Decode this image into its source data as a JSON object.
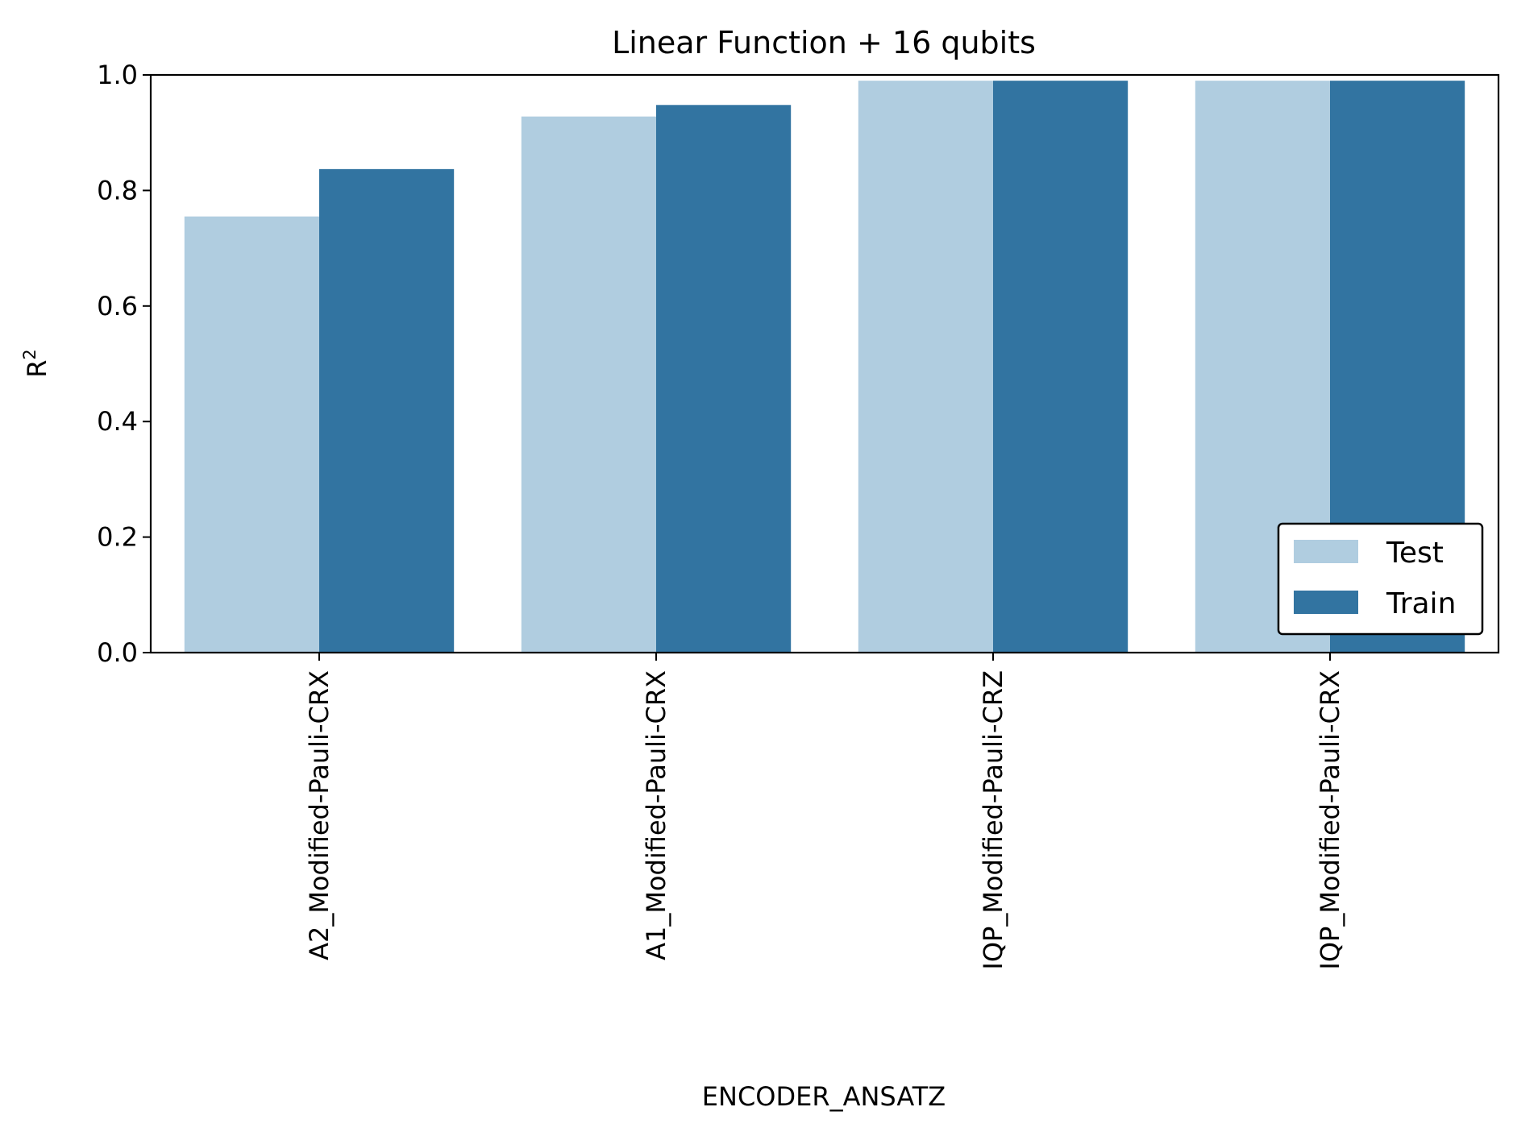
{
  "chart_data": {
    "type": "bar",
    "title": "Linear Function + 16 qubits",
    "xlabel": "ENCODER_ANSATZ",
    "ylabel": "R",
    "ylabel_superscript": "2",
    "ylim": [
      0,
      1.0
    ],
    "yticks": [
      "0.0",
      "0.2",
      "0.4",
      "0.6",
      "0.8",
      "1.0"
    ],
    "categories": [
      "A2_Modified-Pauli-CRX",
      "A1_Modified-Pauli-CRX",
      "IQP_Modified-Pauli-CRZ",
      "IQP_Modified-Pauli-CRX"
    ],
    "series": [
      {
        "name": "Test",
        "color": "#b0cde0",
        "values": [
          0.755,
          0.928,
          0.99,
          0.99
        ]
      },
      {
        "name": "Train",
        "color": "#3274a1",
        "values": [
          0.837,
          0.948,
          0.99,
          0.99
        ]
      }
    ],
    "grid": false,
    "legend_position": "lower right"
  }
}
